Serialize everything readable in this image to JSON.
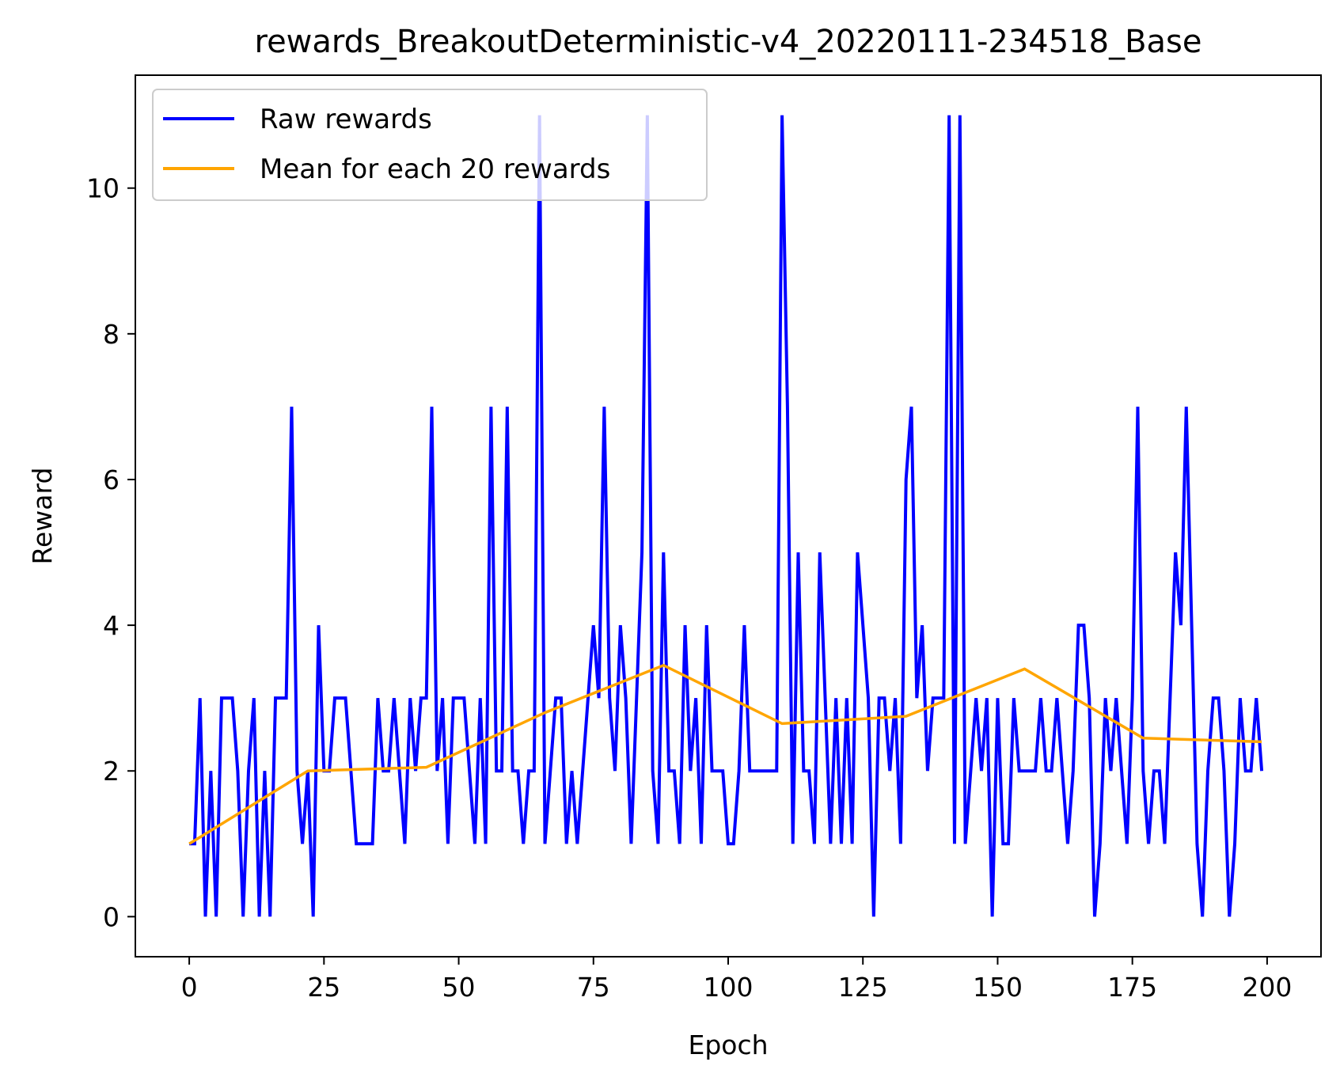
{
  "chart_data": {
    "type": "line",
    "title": "rewards_BreakoutDeterministic-v4_20220111-234518_Base",
    "xlabel": "Epoch",
    "ylabel": "Reward",
    "xlim": [
      -10,
      210
    ],
    "ylim": [
      -0.55,
      11.55
    ],
    "xticks": [
      0,
      25,
      50,
      75,
      100,
      125,
      150,
      175,
      200
    ],
    "yticks": [
      0,
      2,
      4,
      6,
      8,
      10
    ],
    "grid": false,
    "legend_position": "top-left",
    "series": [
      {
        "name": "Raw rewards",
        "color": "#0000ff",
        "x": [
          0,
          1,
          2,
          3,
          4,
          5,
          6,
          7,
          8,
          9,
          10,
          11,
          12,
          13,
          14,
          15,
          16,
          17,
          18,
          19,
          20,
          21,
          22,
          23,
          24,
          25,
          26,
          27,
          28,
          29,
          30,
          31,
          32,
          33,
          34,
          35,
          36,
          37,
          38,
          39,
          40,
          41,
          42,
          43,
          44,
          45,
          46,
          47,
          48,
          49,
          50,
          51,
          52,
          53,
          54,
          55,
          56,
          57,
          58,
          59,
          60,
          61,
          62,
          63,
          64,
          65,
          66,
          67,
          68,
          69,
          70,
          71,
          72,
          73,
          74,
          75,
          76,
          77,
          78,
          79,
          80,
          81,
          82,
          83,
          84,
          85,
          86,
          87,
          88,
          89,
          90,
          91,
          92,
          93,
          94,
          95,
          96,
          97,
          98,
          99,
          100,
          101,
          102,
          103,
          104,
          105,
          106,
          107,
          108,
          109,
          110,
          111,
          112,
          113,
          114,
          115,
          116,
          117,
          118,
          119,
          120,
          121,
          122,
          123,
          124,
          125,
          126,
          127,
          128,
          129,
          130,
          131,
          132,
          133,
          134,
          135,
          136,
          137,
          138,
          139,
          140,
          141,
          142,
          143,
          144,
          145,
          146,
          147,
          148,
          149,
          150,
          151,
          152,
          153,
          154,
          155,
          156,
          157,
          158,
          159,
          160,
          161,
          162,
          163,
          164,
          165,
          166,
          167,
          168,
          169,
          170,
          171,
          172,
          173,
          174,
          175,
          176,
          177,
          178,
          179,
          180,
          181,
          182,
          183,
          184,
          185,
          186,
          187,
          188,
          189,
          190,
          191,
          192,
          193,
          194,
          195,
          196,
          197,
          198,
          199
        ],
        "values": [
          1,
          1,
          3,
          0,
          2,
          0,
          3,
          3,
          3,
          2,
          0,
          2,
          3,
          0,
          2,
          0,
          3,
          3,
          3,
          7,
          2,
          1,
          2,
          0,
          4,
          2,
          2,
          3,
          3,
          3,
          2,
          1,
          1,
          1,
          1,
          3,
          2,
          2,
          3,
          2,
          1,
          3,
          2,
          3,
          3,
          7,
          2,
          3,
          1,
          3,
          3,
          3,
          2,
          1,
          3,
          1,
          7,
          2,
          2,
          7,
          2,
          2,
          1,
          2,
          2,
          11,
          1,
          2,
          3,
          3,
          1,
          2,
          1,
          2,
          3,
          4,
          3,
          7,
          3,
          2,
          4,
          3,
          1,
          3,
          5,
          11,
          2,
          1,
          5,
          2,
          2,
          1,
          4,
          2,
          3,
          1,
          4,
          2,
          2,
          2,
          1,
          1,
          2,
          4,
          2,
          2,
          2,
          2,
          2,
          2,
          11,
          7,
          1,
          5,
          2,
          2,
          1,
          5,
          3,
          1,
          3,
          1,
          3,
          1,
          5,
          4,
          3,
          0,
          3,
          3,
          2,
          3,
          1,
          6,
          7,
          3,
          4,
          2,
          3,
          3,
          3,
          11,
          1,
          11,
          1,
          2,
          3,
          2,
          3,
          0,
          3,
          1,
          1,
          3,
          2,
          2,
          2,
          2,
          3,
          2,
          2,
          3,
          2,
          1,
          2,
          4,
          4,
          3,
          0,
          1,
          3,
          2,
          3,
          2,
          1,
          3,
          7,
          2,
          1,
          2,
          2,
          1,
          3,
          5,
          4,
          7,
          4,
          1,
          0,
          2,
          3,
          3,
          2,
          0,
          1,
          3,
          2,
          2,
          3,
          2
        ]
      },
      {
        "name": "Mean for each 20 rewards",
        "color": "#ffa500",
        "x": [
          0,
          22,
          44,
          66,
          88,
          110,
          133,
          155,
          177,
          199
        ],
        "values": [
          1.0,
          2.0,
          2.05,
          2.8,
          3.45,
          2.65,
          2.75,
          3.4,
          2.45,
          2.4
        ]
      }
    ]
  }
}
